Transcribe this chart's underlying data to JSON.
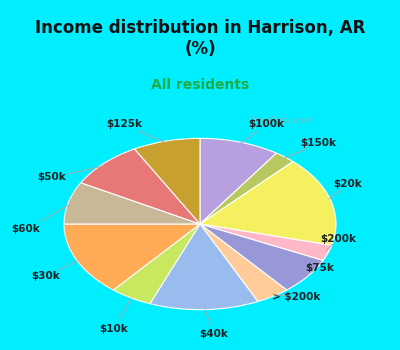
{
  "title": "Income distribution in Harrison, AR\n(%)",
  "subtitle": "All residents",
  "title_color": "#111111",
  "subtitle_color": "#22aa44",
  "background_color": "#00eeff",
  "pie_bg_color": "#dff5ec",
  "labels": [
    "$100k",
    "$150k",
    "$20k",
    "$200k",
    "$75k",
    "> $200k",
    "$40k",
    "$10k",
    "$30k",
    "$60k",
    "$50k",
    "$125k"
  ],
  "sizes": [
    9.5,
    2.5,
    17,
    3,
    7,
    4,
    13,
    5,
    14,
    8,
    9,
    8
  ],
  "colors": [
    "#b8a0e0",
    "#b8c860",
    "#f5f060",
    "#ffb8c8",
    "#9898d8",
    "#ffcc99",
    "#99bbee",
    "#c8e860",
    "#ffaa55",
    "#c8b898",
    "#e87878",
    "#c8a030"
  ],
  "watermark": "   City-Data.com",
  "label_fontsize": 7.5,
  "title_fontsize": 12,
  "subtitle_fontsize": 10
}
